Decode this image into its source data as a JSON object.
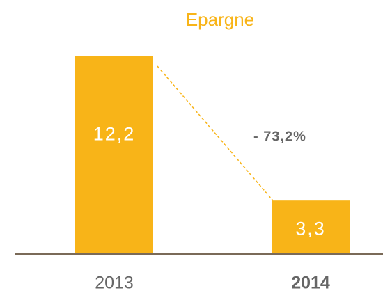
{
  "chart_data": {
    "type": "bar",
    "title": "Epargne",
    "categories": [
      "2013",
      "2014"
    ],
    "values": [
      12.2,
      3.3
    ],
    "value_labels": [
      "12,2",
      "3,3"
    ],
    "color": "#f8b418",
    "annotation": "- 73,2%"
  }
}
